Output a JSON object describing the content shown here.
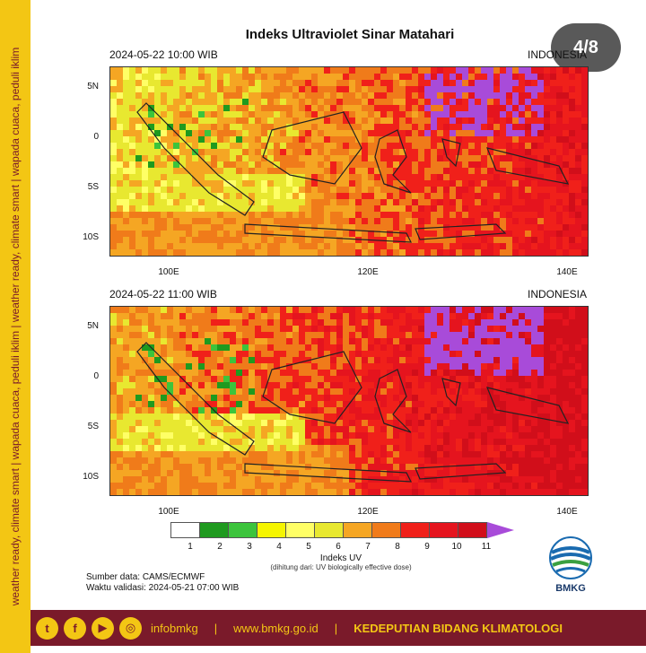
{
  "side_banner": {
    "text": "weather ready, climate smart  |  wapada cuaca, peduli iklim  |  weather ready, climate smart  |  wapada cuaca, peduli iklim"
  },
  "title": "Indeks Ultraviolet Sinar Matahari",
  "page_indicator": "4/8",
  "panels": [
    {
      "date": "2024-05-22  10:00 WIB",
      "region": "INDONESIA"
    },
    {
      "date": "2024-05-22  11:00 WIB",
      "region": "INDONESIA"
    }
  ],
  "axes": {
    "lat_labels": [
      "5N",
      "0",
      "5S",
      "10S"
    ],
    "lon_labels": [
      "100E",
      "120E",
      "140E"
    ]
  },
  "legend": {
    "title": "Indeks UV",
    "note": "(dihitung dari: UV biologically effective dose)",
    "ticks": [
      "1",
      "2",
      "3",
      "4",
      "5",
      "6",
      "7",
      "8",
      "9",
      "10",
      "11"
    ],
    "colors": [
      "#ffffff",
      "#1f9a1f",
      "#3cc43c",
      "#f5f500",
      "#ffff66",
      "#e8e830",
      "#f5a623",
      "#f07b1a",
      "#f0201a",
      "#e5141e",
      "#d10e1a",
      "#a84bd9"
    ]
  },
  "source": "Sumber data: CAMS/ECMWF",
  "validation": "Waktu validasi: 2024-05-21 07:00 WIB",
  "logo_text": "BMKG",
  "footer": {
    "social_icons": [
      "twitter-icon",
      "facebook-icon",
      "youtube-icon",
      "instagram-icon"
    ],
    "handle": "infobmkg",
    "separator": "|",
    "website": "www.bmkg.go.id",
    "department": "KEDEPUTIAN BIDANG KLIMATOLOGI"
  }
}
